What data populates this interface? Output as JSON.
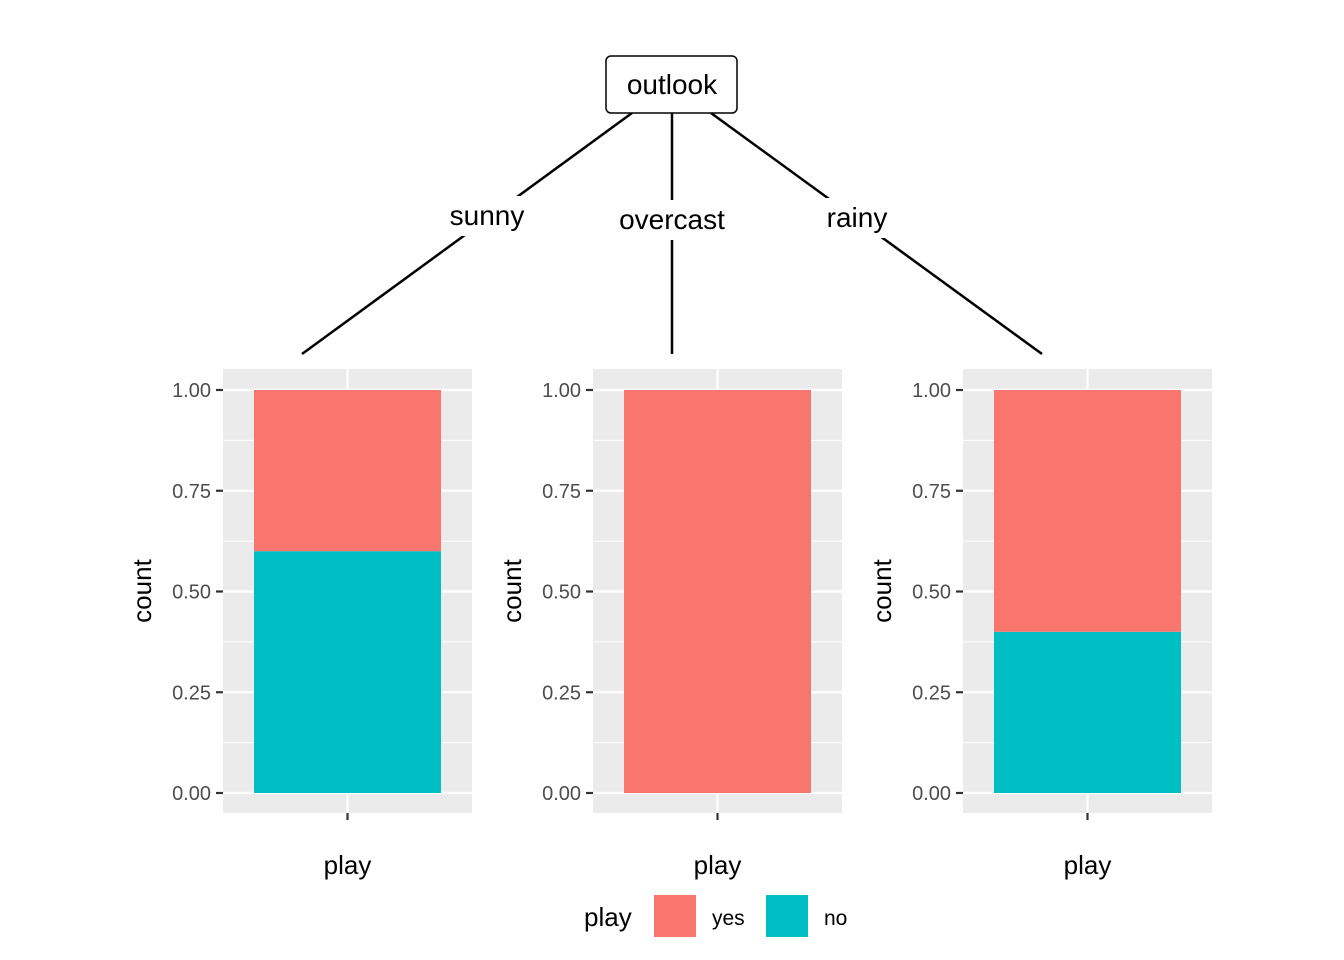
{
  "tree": {
    "root_label": "outlook",
    "edges": [
      "sunny",
      "overcast",
      "rainy"
    ]
  },
  "chart_data": [
    {
      "type": "bar",
      "stacked": true,
      "panel": "sunny",
      "categories": [
        ""
      ],
      "xlabel": "play",
      "ylabel": "count",
      "ylim": [
        0,
        1
      ],
      "yticks": [
        "0.00",
        "0.25",
        "0.50",
        "0.75",
        "1.00"
      ],
      "series": [
        {
          "name": "no",
          "values": [
            0.6
          ],
          "color": "#00BFC4"
        },
        {
          "name": "yes",
          "values": [
            0.4
          ],
          "color": "#F8766D"
        }
      ]
    },
    {
      "type": "bar",
      "stacked": true,
      "panel": "overcast",
      "categories": [
        ""
      ],
      "xlabel": "play",
      "ylabel": "count",
      "ylim": [
        0,
        1
      ],
      "yticks": [
        "0.00",
        "0.25",
        "0.50",
        "0.75",
        "1.00"
      ],
      "series": [
        {
          "name": "no",
          "values": [
            0.0
          ],
          "color": "#00BFC4"
        },
        {
          "name": "yes",
          "values": [
            1.0
          ],
          "color": "#F8766D"
        }
      ]
    },
    {
      "type": "bar",
      "stacked": true,
      "panel": "rainy",
      "categories": [
        ""
      ],
      "xlabel": "play",
      "ylabel": "count",
      "ylim": [
        0,
        1
      ],
      "yticks": [
        "0.00",
        "0.25",
        "0.50",
        "0.75",
        "1.00"
      ],
      "series": [
        {
          "name": "no",
          "values": [
            0.4
          ],
          "color": "#00BFC4"
        },
        {
          "name": "yes",
          "values": [
            0.6
          ],
          "color": "#F8766D"
        }
      ]
    }
  ],
  "legend": {
    "title": "play",
    "position": "bottom",
    "items": [
      {
        "label": "yes",
        "color": "#F8766D"
      },
      {
        "label": "no",
        "color": "#00BFC4"
      }
    ]
  }
}
